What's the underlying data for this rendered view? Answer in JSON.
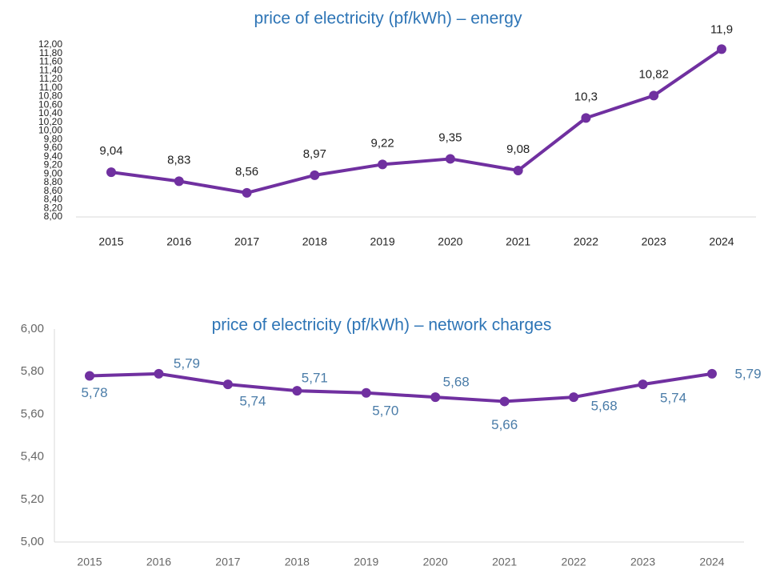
{
  "chart_data": [
    {
      "type": "line",
      "title": "price of electricity (pf/kWh) – energy",
      "categories": [
        "2015",
        "2016",
        "2017",
        "2018",
        "2019",
        "2020",
        "2021",
        "2022",
        "2023",
        "2024"
      ],
      "series": [
        {
          "color": "#7030a0",
          "values": [
            9.04,
            8.83,
            8.56,
            8.97,
            9.22,
            9.35,
            9.08,
            10.3,
            10.82,
            11.9
          ],
          "value_labels": [
            "9,04",
            "8,83",
            "8,56",
            "8,97",
            "9,22",
            "9,35",
            "9,08",
            "10,3",
            "10,82",
            "11,9"
          ]
        }
      ],
      "ylim": [
        8,
        12
      ],
      "yticks": [
        {
          "value": 8,
          "label": "8,00"
        },
        {
          "value": 8.2,
          "label": "8,20"
        },
        {
          "value": 8.4,
          "label": "8,40"
        },
        {
          "value": 8.6,
          "label": "8,60"
        },
        {
          "value": 8.8,
          "label": "8,80"
        },
        {
          "value": 9,
          "label": "9,00"
        },
        {
          "value": 9.2,
          "label": "9,20"
        },
        {
          "value": 9.4,
          "label": "9,40"
        },
        {
          "value": 9.6,
          "label": "9,60"
        },
        {
          "value": 9.8,
          "label": "9,80"
        },
        {
          "value": 10,
          "label": "10,00"
        },
        {
          "value": 10.2,
          "label": "10,20"
        },
        {
          "value": 10.4,
          "label": "10,40"
        },
        {
          "value": 10.6,
          "label": "10,60"
        },
        {
          "value": 10.8,
          "label": "10,80"
        },
        {
          "value": 11,
          "label": "11,00"
        },
        {
          "value": 11.2,
          "label": "11,20"
        },
        {
          "value": 11.4,
          "label": "11,40"
        },
        {
          "value": 11.6,
          "label": "11,60"
        },
        {
          "value": 11.8,
          "label": "11,80"
        },
        {
          "value": 12,
          "label": "12,00"
        }
      ],
      "label_color": "#222222",
      "grid": false
    },
    {
      "type": "line",
      "title": "price of electricity (pf/kWh) – network charges",
      "categories": [
        "2015",
        "2016",
        "2017",
        "2018",
        "2019",
        "2020",
        "2021",
        "2022",
        "2023",
        "2024"
      ],
      "series": [
        {
          "color": "#7030a0",
          "values": [
            5.78,
            5.79,
            5.74,
            5.71,
            5.7,
            5.68,
            5.66,
            5.68,
            5.74,
            5.79
          ],
          "value_labels": [
            "5,78",
            "5,79",
            "5,74",
            "5,71",
            "5,70",
            "5,68",
            "5,66",
            "5,68",
            "5,74",
            "5,79"
          ]
        }
      ],
      "ylim": [
        5,
        6
      ],
      "yticks": [
        {
          "value": 5,
          "label": "5,00"
        },
        {
          "value": 5.2,
          "label": "5,20"
        },
        {
          "value": 5.4,
          "label": "5,40"
        },
        {
          "value": 5.6,
          "label": "5,60"
        },
        {
          "value": 5.8,
          "label": "5,80"
        },
        {
          "value": 6,
          "label": "6,00"
        }
      ],
      "label_color": "#4a7ca8",
      "grid": false
    }
  ]
}
